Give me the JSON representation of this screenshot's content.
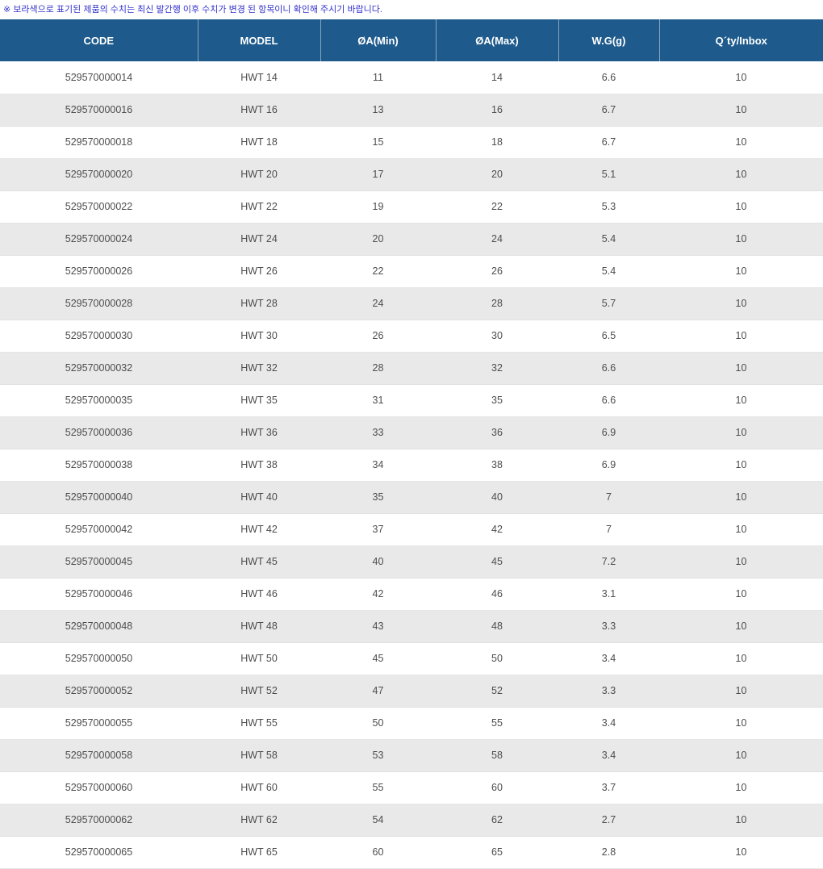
{
  "notice": "※ 보라색으로 표기된 제품의 수치는 최신 발간행 이후 수치가 변경 된 항목이니 확인해 주시기 바랍니다.",
  "table": {
    "columns": [
      "CODE",
      "MODEL",
      "ØA(Min)",
      "ØA(Max)",
      "W.G(g)",
      "Q´ty/Inbox"
    ],
    "rows": [
      [
        "529570000014",
        "HWT 14",
        "11",
        "14",
        "6.6",
        "10"
      ],
      [
        "529570000016",
        "HWT 16",
        "13",
        "16",
        "6.7",
        "10"
      ],
      [
        "529570000018",
        "HWT 18",
        "15",
        "18",
        "6.7",
        "10"
      ],
      [
        "529570000020",
        "HWT 20",
        "17",
        "20",
        "5.1",
        "10"
      ],
      [
        "529570000022",
        "HWT 22",
        "19",
        "22",
        "5.3",
        "10"
      ],
      [
        "529570000024",
        "HWT 24",
        "20",
        "24",
        "5.4",
        "10"
      ],
      [
        "529570000026",
        "HWT 26",
        "22",
        "26",
        "5.4",
        "10"
      ],
      [
        "529570000028",
        "HWT 28",
        "24",
        "28",
        "5.7",
        "10"
      ],
      [
        "529570000030",
        "HWT 30",
        "26",
        "30",
        "6.5",
        "10"
      ],
      [
        "529570000032",
        "HWT 32",
        "28",
        "32",
        "6.6",
        "10"
      ],
      [
        "529570000035",
        "HWT 35",
        "31",
        "35",
        "6.6",
        "10"
      ],
      [
        "529570000036",
        "HWT 36",
        "33",
        "36",
        "6.9",
        "10"
      ],
      [
        "529570000038",
        "HWT 38",
        "34",
        "38",
        "6.9",
        "10"
      ],
      [
        "529570000040",
        "HWT 40",
        "35",
        "40",
        "7",
        "10"
      ],
      [
        "529570000042",
        "HWT 42",
        "37",
        "42",
        "7",
        "10"
      ],
      [
        "529570000045",
        "HWT 45",
        "40",
        "45",
        "7.2",
        "10"
      ],
      [
        "529570000046",
        "HWT 46",
        "42",
        "46",
        "3.1",
        "10"
      ],
      [
        "529570000048",
        "HWT 48",
        "43",
        "48",
        "3.3",
        "10"
      ],
      [
        "529570000050",
        "HWT 50",
        "45",
        "50",
        "3.4",
        "10"
      ],
      [
        "529570000052",
        "HWT 52",
        "47",
        "52",
        "3.3",
        "10"
      ],
      [
        "529570000055",
        "HWT 55",
        "50",
        "55",
        "3.4",
        "10"
      ],
      [
        "529570000058",
        "HWT 58",
        "53",
        "58",
        "3.4",
        "10"
      ],
      [
        "529570000060",
        "HWT 60",
        "55",
        "60",
        "3.7",
        "10"
      ],
      [
        "529570000062",
        "HWT 62",
        "54",
        "62",
        "2.7",
        "10"
      ],
      [
        "529570000065",
        "HWT 65",
        "60",
        "65",
        "2.8",
        "10"
      ]
    ]
  },
  "colors": {
    "header_bg": "#1e5b8c",
    "alt_row_bg": "#e9e9e9",
    "notice_text": "#3333cc"
  }
}
